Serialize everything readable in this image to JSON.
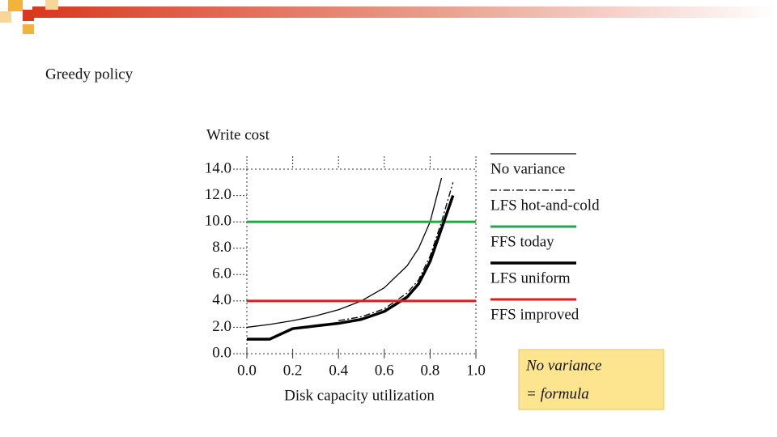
{
  "slide": {
    "title": "Greedy policy",
    "note": [
      "No variance",
      "= formula"
    ]
  },
  "chart_data": {
    "type": "line",
    "ylabel": "Write cost",
    "xlabel": "Disk capacity utilization",
    "x": [
      0,
      0.1,
      0.2,
      0.3,
      0.4,
      0.5,
      0.6,
      0.7,
      0.75,
      0.8,
      0.85,
      0.9,
      1.0
    ],
    "series": [
      {
        "name": "No variance",
        "color": "#000000",
        "style": "solid",
        "values": [
          2,
          2.22,
          2.5,
          2.86,
          3.33,
          4,
          5,
          6.67,
          8,
          10,
          13.33,
          null,
          null
        ]
      },
      {
        "name": "LFS hot-and-cold",
        "color": "#000000",
        "style": "dashdot",
        "values": [
          null,
          null,
          null,
          null,
          2.5,
          2.8,
          3.4,
          4.6,
          5.6,
          7.4,
          10,
          13,
          null
        ]
      },
      {
        "name": "FFS today",
        "color": "#1faa4a",
        "style": "solid",
        "values": [
          10,
          10,
          10,
          10,
          10,
          10,
          10,
          10,
          10,
          10,
          10,
          10,
          10
        ]
      },
      {
        "name": "LFS uniform",
        "color": "#000000",
        "style": "thick",
        "values": [
          1.1,
          1.1,
          1.9,
          2.1,
          2.3,
          2.6,
          3.2,
          4.3,
          5.3,
          7,
          9.5,
          12,
          null
        ]
      },
      {
        "name": "FFS improved",
        "color": "#e01b1b",
        "style": "solid",
        "values": [
          4,
          4,
          4,
          4,
          4,
          4,
          4,
          4,
          4,
          4,
          4,
          4,
          4
        ]
      }
    ],
    "xlim": [
      0,
      1.0
    ],
    "xticks": [
      {
        "value": 0,
        "label": "0.0"
      },
      {
        "value": 0.2,
        "label": "0.2"
      },
      {
        "value": 0.4,
        "label": "0.4"
      },
      {
        "value": 0.6,
        "label": "0.6"
      },
      {
        "value": 0.8,
        "label": "0.8"
      },
      {
        "value": 1.0,
        "label": "1.0"
      }
    ],
    "ylim": [
      0,
      14
    ],
    "yticks": [
      {
        "value": 0,
        "label": "0.0"
      },
      {
        "value": 2,
        "label": "2.0"
      },
      {
        "value": 4,
        "label": "4.0"
      },
      {
        "value": 6,
        "label": "6.0"
      },
      {
        "value": 8,
        "label": "8.0"
      },
      {
        "value": 10,
        "label": "10.0"
      },
      {
        "value": 12,
        "label": "12.0"
      },
      {
        "value": 14,
        "label": "14.0"
      }
    ],
    "legend": "right"
  }
}
